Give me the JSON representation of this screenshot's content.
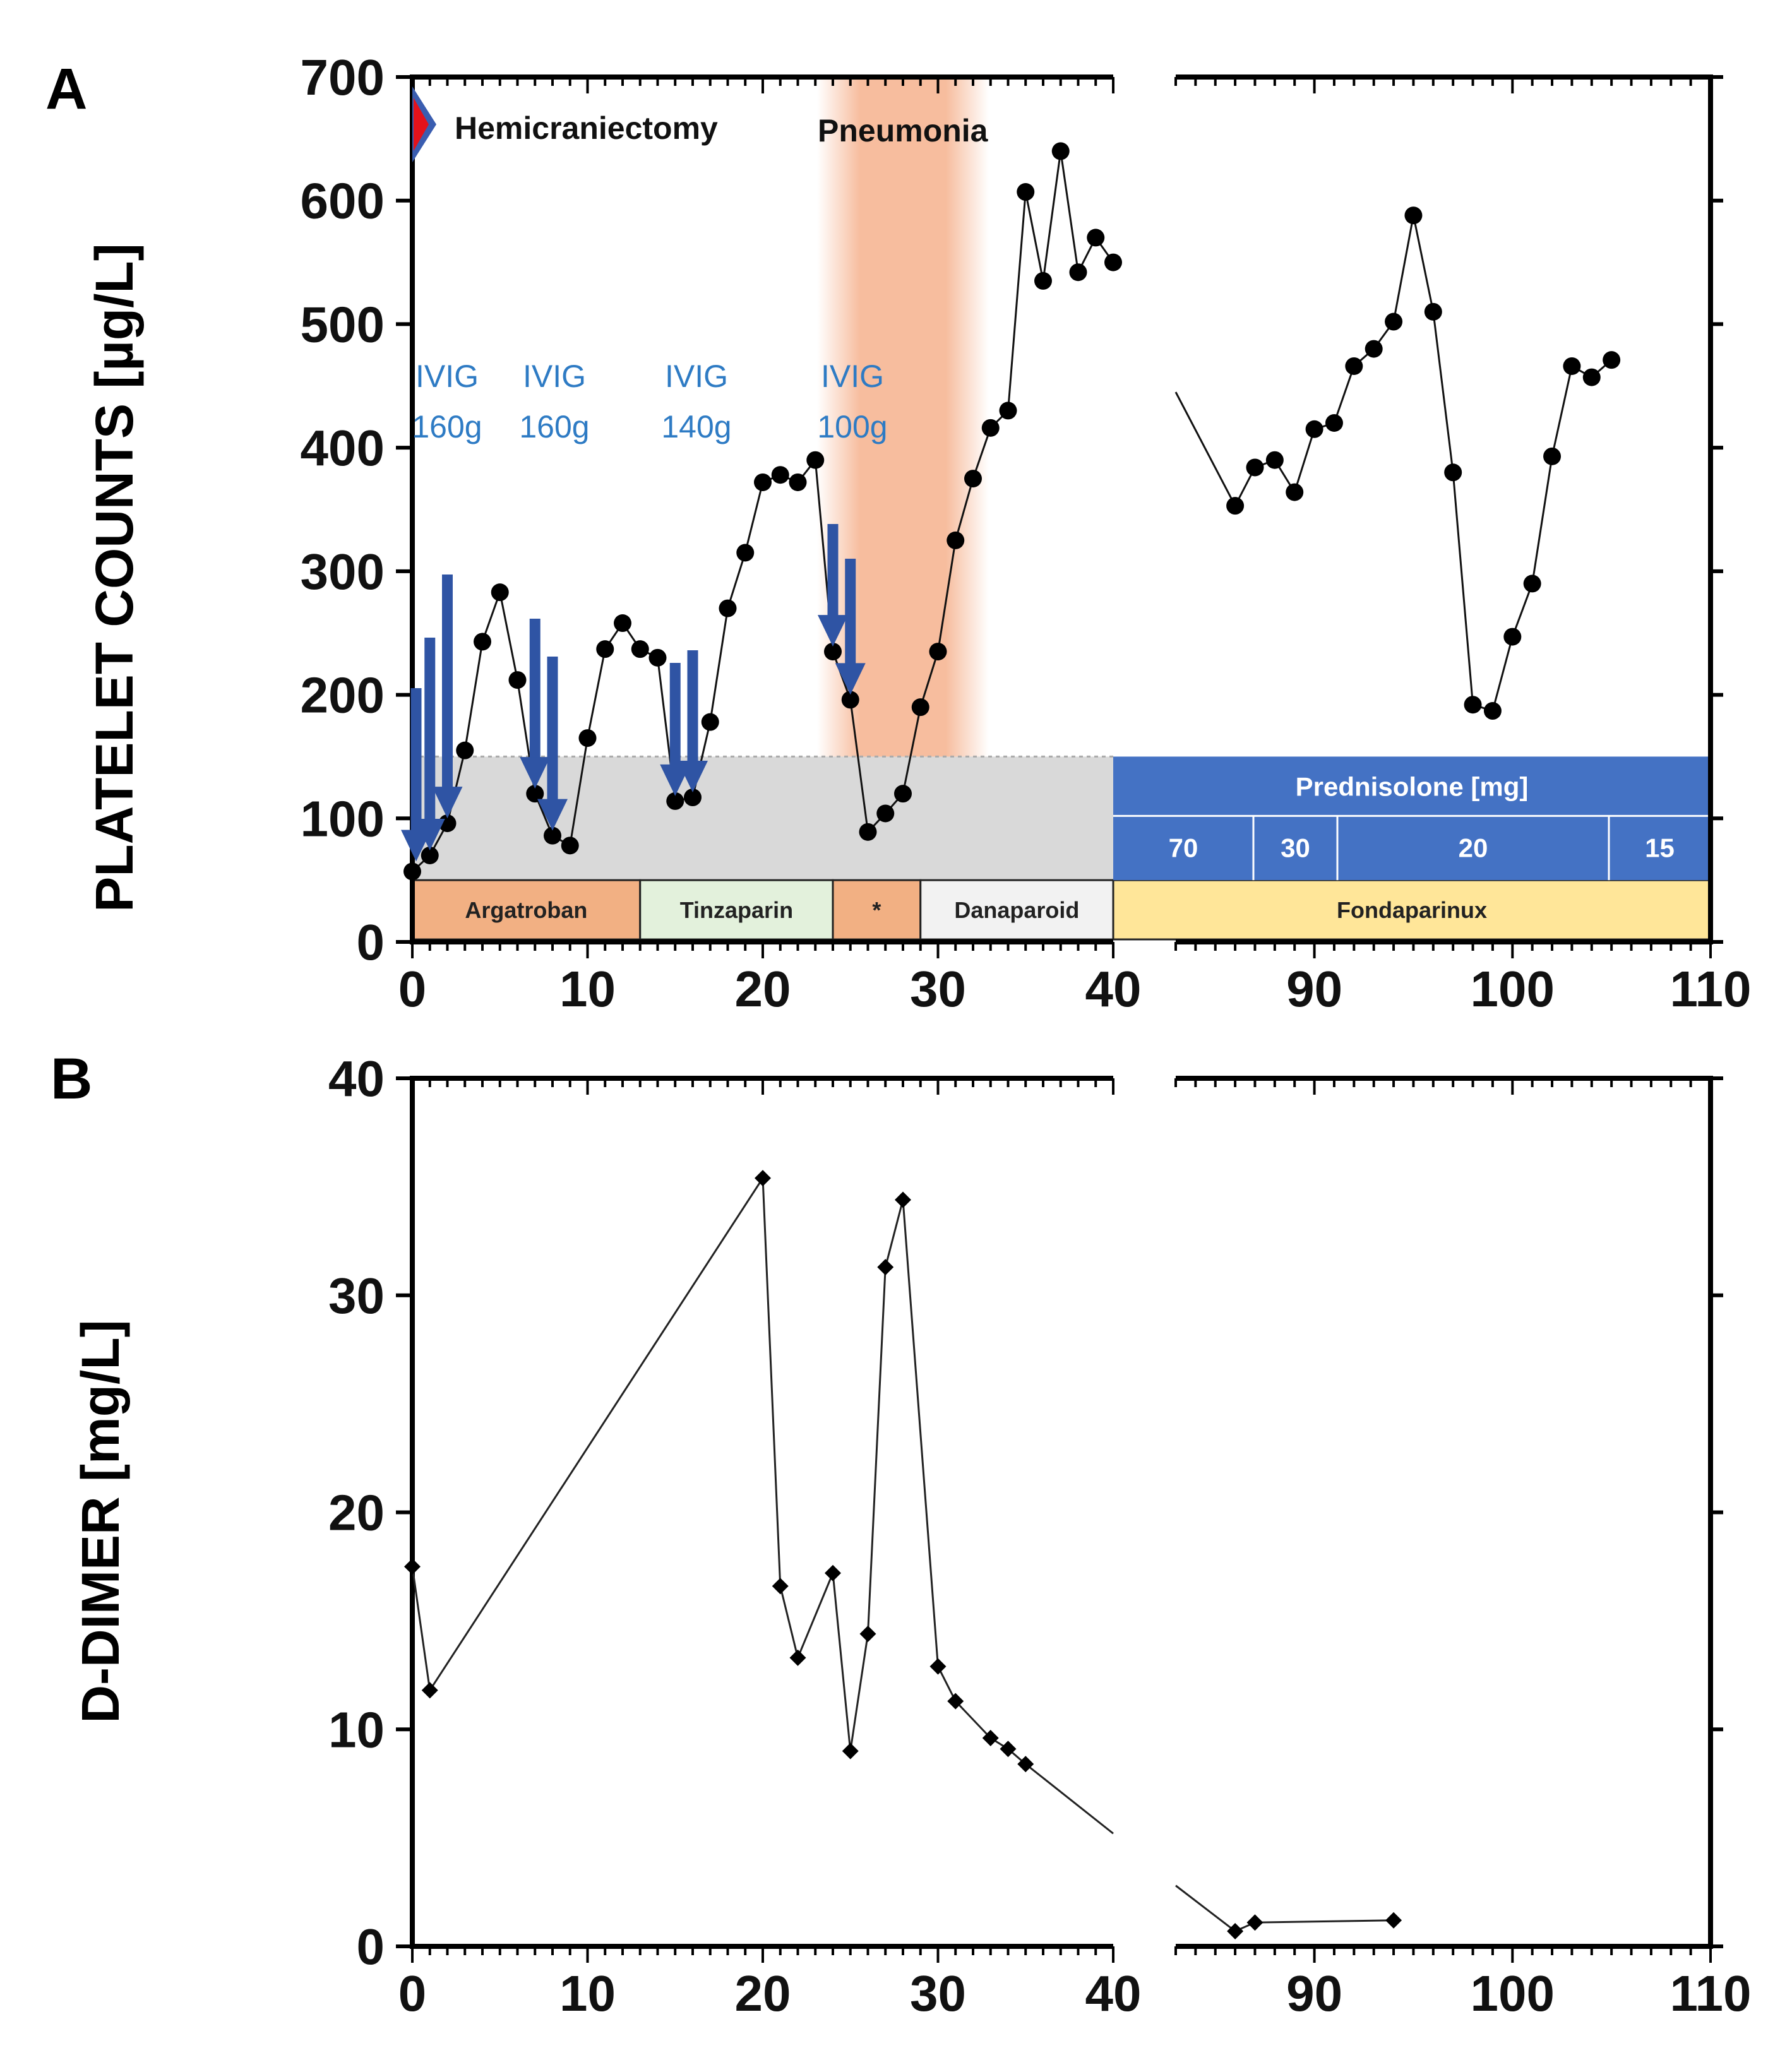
{
  "chart_data": [
    {
      "panel": "A",
      "type": "line",
      "ylabel": "PLATELET COUNTS [µg/L]",
      "ylim": [
        0,
        700
      ],
      "y_ticks": [
        0,
        100,
        200,
        300,
        400,
        500,
        600,
        700
      ],
      "x_ticks": [
        0,
        10,
        20,
        30,
        40,
        90,
        100,
        110
      ],
      "x_break": [
        40,
        83
      ],
      "x_segments": [
        [
          0,
          40
        ],
        [
          83,
          110
        ]
      ],
      "reference_range": [
        0,
        150
      ],
      "series_left": [
        [
          0,
          57
        ],
        [
          1,
          70
        ],
        [
          2,
          96
        ],
        [
          3,
          155
        ],
        [
          4,
          243
        ],
        [
          5,
          283
        ],
        [
          6,
          212
        ],
        [
          7,
          120
        ],
        [
          8,
          86
        ],
        [
          9,
          78
        ],
        [
          10,
          165
        ],
        [
          11,
          237
        ],
        [
          12,
          258
        ],
        [
          13,
          237
        ],
        [
          14,
          230
        ],
        [
          15,
          114
        ],
        [
          16,
          117
        ],
        [
          17,
          178
        ],
        [
          18,
          270
        ],
        [
          19,
          315
        ],
        [
          20,
          372
        ],
        [
          21,
          378
        ],
        [
          22,
          372
        ],
        [
          23,
          390
        ],
        [
          24,
          235
        ],
        [
          25,
          196
        ],
        [
          26,
          89
        ],
        [
          27,
          104
        ],
        [
          28,
          120
        ],
        [
          29,
          190
        ],
        [
          30,
          235
        ],
        [
          31,
          325
        ],
        [
          32,
          375
        ],
        [
          33,
          416
        ],
        [
          34,
          430
        ],
        [
          35,
          607
        ],
        [
          36,
          535
        ],
        [
          37,
          640
        ],
        [
          38,
          542
        ],
        [
          39,
          570
        ],
        [
          40,
          550
        ]
      ],
      "series_right": [
        [
          83,
          445
        ],
        [
          86,
          353
        ],
        [
          87,
          384
        ],
        [
          88,
          390
        ],
        [
          89,
          364
        ],
        [
          90,
          415
        ],
        [
          91,
          420
        ],
        [
          92,
          466
        ],
        [
          93,
          480
        ],
        [
          94,
          502
        ],
        [
          95,
          588
        ],
        [
          96,
          510
        ],
        [
          97,
          380
        ],
        [
          98,
          192
        ],
        [
          99,
          187
        ],
        [
          100,
          247
        ],
        [
          101,
          290
        ],
        [
          102,
          393
        ],
        [
          103,
          466
        ],
        [
          104,
          457
        ],
        [
          105,
          471
        ]
      ],
      "events": [
        {
          "label": "Hemicraniectomy",
          "x": 0
        },
        {
          "label": "Pneumonia",
          "x_range": [
            24,
            32
          ]
        }
      ],
      "ivig": [
        {
          "label": "IVIG",
          "dose": "160g"
        },
        {
          "label": "IVIG",
          "dose": "160g"
        },
        {
          "label": "IVIG",
          "dose": "140g"
        },
        {
          "label": "IVIG",
          "dose": "100g"
        }
      ],
      "ivig_arrow_days": [
        0,
        1,
        2,
        7,
        8,
        15,
        16,
        24,
        25
      ],
      "anticoagulation": [
        {
          "label": "Argatroban",
          "start": 0,
          "end": 13,
          "color": "#f2b083"
        },
        {
          "label": "Tinzaparin",
          "start": 13,
          "end": 24,
          "color": "#e3f1dc"
        },
        {
          "label": "*",
          "start": 24,
          "end": 29,
          "color": "#f2b083"
        },
        {
          "label": "Danaparoid",
          "start": 29,
          "end": 40,
          "color": "#f2f2f2"
        },
        {
          "label": "Fondaparinux",
          "start": 40,
          "end": 110,
          "color": "#ffe699"
        }
      ],
      "prednisolone": {
        "title": "Prednisolone [mg]",
        "color": "#4472c4",
        "doses": [
          {
            "label": "70",
            "start": 40,
            "end": 88
          },
          {
            "label": "30",
            "start": 88,
            "end": 93
          },
          {
            "label": "20",
            "start": 93,
            "end": 105
          },
          {
            "label": "15",
            "start": 105,
            "end": 110
          }
        ]
      },
      "colors": {
        "line": "#111111",
        "arrow": "#2f54a4",
        "pneumonia": "#f4a77e",
        "reference": "#d9d9d9",
        "hemi_marker": "#e3121b"
      }
    },
    {
      "panel": "B",
      "type": "line",
      "ylabel": "D-DIMER [mg/L]",
      "ylim": [
        0,
        40
      ],
      "y_ticks": [
        0,
        10,
        20,
        30,
        40
      ],
      "x_ticks": [
        0,
        10,
        20,
        30,
        40,
        90,
        100,
        110
      ],
      "x_break": [
        40,
        83
      ],
      "x_segments": [
        [
          0,
          40
        ],
        [
          83,
          110
        ]
      ],
      "series_left": [
        [
          0,
          17.5
        ],
        [
          1,
          11.8
        ],
        [
          20,
          35.4
        ],
        [
          21,
          16.6
        ],
        [
          22,
          13.3
        ],
        [
          24,
          17.2
        ],
        [
          25,
          9.0
        ],
        [
          26,
          14.4
        ],
        [
          27,
          31.3
        ],
        [
          28,
          34.4
        ],
        [
          30,
          12.9
        ],
        [
          31,
          11.3
        ],
        [
          33,
          9.6
        ],
        [
          34,
          9.1
        ],
        [
          35,
          8.4
        ],
        [
          40,
          5.2
        ]
      ],
      "series_right": [
        [
          83,
          2.8
        ],
        [
          86,
          0.7
        ],
        [
          87,
          1.1
        ],
        [
          94,
          1.2
        ]
      ],
      "colors": {
        "line": "#222222",
        "marker": "#000000"
      }
    }
  ],
  "panels": {
    "a_letter": "A",
    "b_letter": "B"
  }
}
